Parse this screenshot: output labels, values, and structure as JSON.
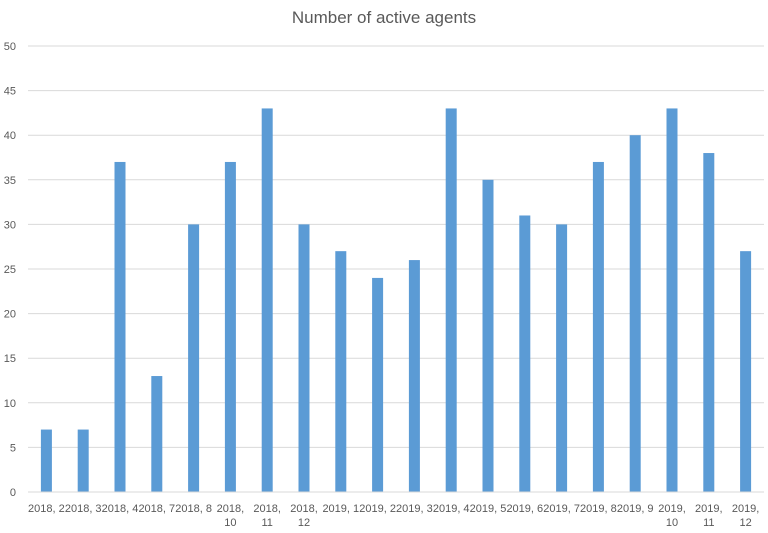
{
  "chart_data": {
    "type": "bar",
    "title": "Number of active agents",
    "xlabel": "",
    "ylabel": "",
    "ylim": [
      0,
      50
    ],
    "yticks": [
      0,
      5,
      10,
      15,
      20,
      25,
      30,
      35,
      40,
      45,
      50
    ],
    "grid": true,
    "legend": "none",
    "bar_color": "#5B9BD5",
    "categories": [
      "2018, 2",
      "2018, 3",
      "2018, 4",
      "2018, 7",
      "2018, 8",
      "2018, 10",
      "2018, 11",
      "2018, 12",
      "2019, 1",
      "2019, 2",
      "2019, 3",
      "2019, 4",
      "2019, 5",
      "2019, 6",
      "2019, 7",
      "2019, 8",
      "2019, 9",
      "2019, 10",
      "2019, 11",
      "2019, 12"
    ],
    "values": [
      7,
      7,
      37,
      13,
      30,
      37,
      43,
      30,
      27,
      24,
      26,
      43,
      35,
      31,
      30,
      37,
      40,
      43,
      38,
      27
    ]
  }
}
